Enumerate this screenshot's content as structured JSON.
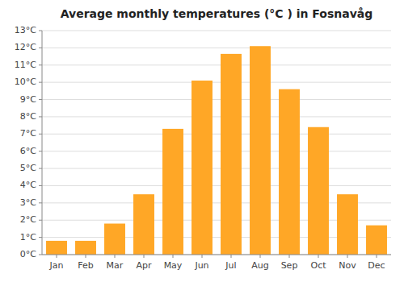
{
  "chart_data": {
    "type": "bar",
    "title": "Average monthly temperatures (°C ) in Fosnavåg",
    "categories": [
      "Jan",
      "Feb",
      "Mar",
      "Apr",
      "May",
      "Jun",
      "Jul",
      "Aug",
      "Sep",
      "Oct",
      "Nov",
      "Dec"
    ],
    "values": [
      0.8,
      0.8,
      1.8,
      3.5,
      7.3,
      10.1,
      11.65,
      12.1,
      9.6,
      7.4,
      3.5,
      1.7
    ],
    "color": "#FFA726",
    "ylim": [
      0,
      13
    ],
    "yticks": [
      {
        "value": 0,
        "label": "0°C"
      },
      {
        "value": 1,
        "label": "1°C"
      },
      {
        "value": 2,
        "label": "2°C"
      },
      {
        "value": 3,
        "label": "3°C"
      },
      {
        "value": 4,
        "label": "4°C"
      },
      {
        "value": 5,
        "label": "5°C"
      },
      {
        "value": 6,
        "label": "6°C"
      },
      {
        "value": 7,
        "label": "7°C"
      },
      {
        "value": 8,
        "label": "8°C"
      },
      {
        "value": 9,
        "label": "9°C"
      },
      {
        "value": 10,
        "label": "10°C"
      },
      {
        "value": 11,
        "label": "11°C"
      },
      {
        "value": 12,
        "label": "12°C"
      },
      {
        "value": 13,
        "label": "13°C"
      }
    ],
    "grid": true
  }
}
